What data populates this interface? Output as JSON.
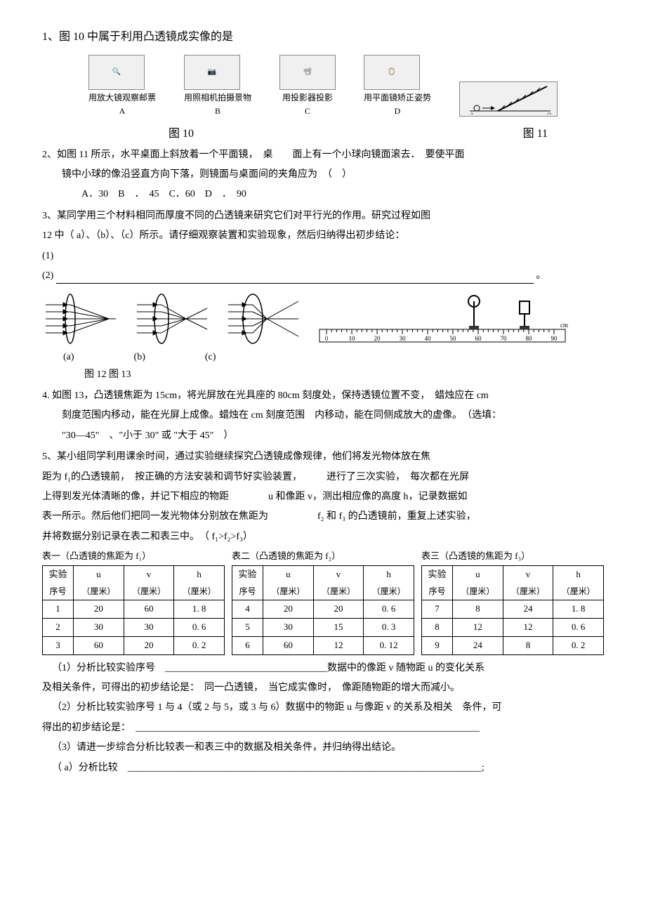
{
  "q1": {
    "title": "1、图 10 中属于利用凸透镜成实像的是",
    "items": [
      {
        "label": "A",
        "desc": "用放大镜观察邮票"
      },
      {
        "label": "B",
        "desc": "用照相机拍摄景物"
      },
      {
        "label": "C",
        "desc": "用投影器投影"
      },
      {
        "label": "D",
        "desc": "用平面镜矫正姿势"
      }
    ],
    "caption_left": "图 10",
    "caption_right": "图 11"
  },
  "q2": {
    "line1": "2、如图 11 所示，水平桌面上斜放着一个平面镜，　桌　　面上有一个小球向镜面滚去．　要使平面",
    "line2": "镜中小球的像沿竖直方向下落，则镜面与桌面间的夹角应为　（　）",
    "options": "A．30　B　．　45　C．60　D　．　90"
  },
  "q3": {
    "line1": "3、某同学用三个材料相同而厚度不同的凸透镜来研究它们对平行光的作用。研究过程如图",
    "line2": "12 中（ a）、（b）、（c）所示。请仔细观察装置和实验现象，然后归纳得出初步结论：",
    "sub1": "(1)",
    "sub2": "(2)",
    "lens_labels": {
      "a": "(a)",
      "b": "(b)",
      "c": "(c)"
    },
    "fig_caption": "图 12 图 13",
    "ruler_ticks": [
      0,
      10,
      20,
      30,
      40,
      50,
      60,
      70,
      80,
      90
    ],
    "ruler_unit": "cm"
  },
  "q4": {
    "line1": "4. 如图 13，凸透镜焦距为 15cm，将光屏放在光具座的 80cm 刻度处，保持透镜位置不变，　蜡烛应在 cm",
    "line2": "刻度范围内移动，能在光屏上成像。蜡烛在 cm 刻度范围　内移动，能在同侧成放大的虚像。　（选填：",
    "line3": "\"30—45\"　、\"小于 30\" 或 \"大于 45\"　）"
  },
  "q5": {
    "line1": "5、某小组同学利用课余时间，通过实验继续探究凸透镜成像规律，他们将发光物体放在焦",
    "line2": "距为 f₁的凸透镜前，　按正确的方法安装和调节好实验装置，　　　进行了三次实验，　每次都在光屏",
    "line3": "上得到发光体清晰的像，并记下相应的物距　　　　u 和像距 v，测出相应像的高度 h，记录数据如",
    "line4": "表一所示。然后他们把同一发光物体分别放在焦距为　　　　　f₂ 和 f₃ 的凸透镜前，重复上述实验，",
    "line5": "并将数据分别记录在表二和表三中。　（ f₁>f₂>f₃）"
  },
  "tables": {
    "t1": {
      "caption": "表一（凸透镜的焦距为 f₁）",
      "headers_top": [
        "实验",
        "u",
        "v",
        "h"
      ],
      "headers_bot": [
        "序号",
        "（厘米）",
        "（厘米）",
        "（厘米）"
      ],
      "rows": [
        [
          "1",
          "20",
          "60",
          "1. 8"
        ],
        [
          "2",
          "30",
          "30",
          "0. 6"
        ],
        [
          "3",
          "60",
          "20",
          "0. 2"
        ]
      ]
    },
    "t2": {
      "caption": "表二（凸透镜的焦距为 f₂）",
      "headers_top": [
        "实验",
        "u",
        "v",
        "h"
      ],
      "headers_bot": [
        "序号",
        "（厘米）",
        "（厘米）",
        "（厘米）"
      ],
      "rows": [
        [
          "4",
          "20",
          "20",
          "0. 6"
        ],
        [
          "5",
          "30",
          "15",
          "0. 3"
        ],
        [
          "6",
          "60",
          "12",
          "0. 12"
        ]
      ]
    },
    "t3": {
      "caption": "表三（凸透镜的焦距为 f₃）",
      "headers_top": [
        "实验",
        "u",
        "v",
        "h"
      ],
      "headers_bot": [
        "序号",
        "（厘米）",
        "（厘米）",
        "（厘米）"
      ],
      "rows": [
        [
          "7",
          "8",
          "24",
          "1. 8"
        ],
        [
          "8",
          "12",
          "12",
          "0. 6"
        ],
        [
          "9",
          "24",
          "8",
          "0. 2"
        ]
      ]
    }
  },
  "sub1": {
    "line1": "（1）分析比较实验序号　_________________________________数据中的像距 v 随物距 u 的变化关系",
    "line2": "及相关条件，可得出的初步结论是：　同一凸透镜，　当它成实像时，　像距随物距的增大而减小。"
  },
  "sub2": {
    "line1": "（2）分析比较实验序号 1 与 4（或 2 与 5，或 3 与 6）数据中的物距 u 与像距 v 的关系及相关　条件，可",
    "line2": "得出的初步结论是：　______________________________________________________________________"
  },
  "sub3": {
    "line1": "（3）请进一步综合分析比较表一和表三中的数据及相关条件，并归纳得出结论。",
    "line2": "（ a）分析比较　________________________________________________________________________;"
  },
  "colors": {
    "text": "#000000",
    "bg": "#ffffff",
    "border": "#000000",
    "diagram_stroke": "#333333"
  }
}
